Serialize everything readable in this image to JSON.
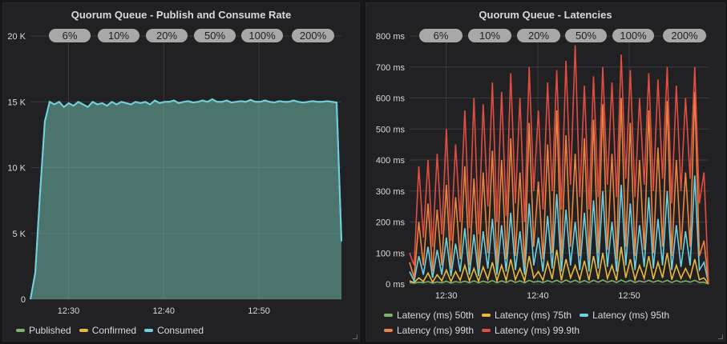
{
  "left": {
    "title": "Quorum Queue - Publish and Consume Rate",
    "annotations": [
      "6%",
      "10%",
      "20%",
      "50%",
      "100%",
      "200%"
    ],
    "legend": [
      {
        "name": "Published",
        "color": "#7eb26d"
      },
      {
        "name": "Confirmed",
        "color": "#eab839"
      },
      {
        "name": "Consumed",
        "color": "#6ed0e0"
      }
    ]
  },
  "right": {
    "title": "Quorum Queue - Latencies",
    "annotations": [
      "6%",
      "10%",
      "20%",
      "50%",
      "100%",
      "200%"
    ],
    "legend": [
      {
        "name": "Latency (ms) 50th",
        "color": "#7eb26d"
      },
      {
        "name": "Latency (ms) 75th",
        "color": "#eab839"
      },
      {
        "name": "Latency (ms) 95th",
        "color": "#6ed0e0"
      },
      {
        "name": "Latency (ms) 99th",
        "color": "#ef843c"
      },
      {
        "name": "Latency (ms) 99.9th",
        "color": "#e24d42"
      }
    ]
  },
  "chart_data": [
    {
      "type": "area",
      "title": "Quorum Queue - Publish and Consume Rate",
      "xlim": [
        "12:26:00",
        "12:58:40"
      ],
      "xticks": [
        "12:30",
        "12:40",
        "12:50"
      ],
      "yticks": [
        "0",
        "5 K",
        "10 K",
        "15 K",
        "20 K"
      ],
      "ylim": [
        0,
        20000
      ],
      "grid": true,
      "legend": "bottom",
      "series": [
        {
          "name": "Published",
          "color": "#7eb26d",
          "values": [
            0,
            2000,
            8000,
            13500,
            15000,
            14800,
            15000,
            14600,
            14900,
            14700,
            15000,
            14800,
            14600,
            15000,
            14800,
            14900,
            14700,
            15000,
            14800,
            15000,
            14900,
            14800,
            15000,
            14900,
            15000,
            14800,
            15100,
            14900,
            15000,
            15000,
            15100,
            14900,
            15000,
            15050,
            14950,
            15000,
            15100,
            15000,
            15200,
            15000,
            15000,
            15100,
            14950,
            15000,
            15050,
            15000,
            15150,
            15000,
            15000,
            15100,
            15000,
            14950,
            15050,
            15000,
            15000,
            15100,
            15000,
            14950,
            15000,
            15050,
            15000,
            15000,
            15050,
            15000,
            14950,
            4400
          ]
        },
        {
          "name": "Confirmed",
          "color": "#eab839",
          "values": []
        },
        {
          "name": "Consumed",
          "color": "#6ed0e0",
          "values": [
            0,
            2000,
            8000,
            13500,
            15000,
            14800,
            15000,
            14600,
            14900,
            14700,
            15000,
            14800,
            14600,
            15000,
            14800,
            14900,
            14700,
            15000,
            14800,
            15000,
            14900,
            14800,
            15000,
            14900,
            15000,
            14800,
            15100,
            14900,
            15000,
            15000,
            15100,
            14900,
            15000,
            15050,
            14950,
            15000,
            15100,
            15000,
            15200,
            15000,
            15000,
            15100,
            14950,
            15000,
            15050,
            15000,
            15150,
            15000,
            15000,
            15100,
            15000,
            14950,
            15050,
            15000,
            15000,
            15100,
            15000,
            14950,
            15000,
            15050,
            15000,
            15000,
            15050,
            15000,
            14950,
            4400
          ]
        }
      ]
    },
    {
      "type": "line",
      "title": "Quorum Queue - Latencies",
      "xlim": [
        "12:26:00",
        "12:58:40"
      ],
      "xticks": [
        "12:30",
        "12:40",
        "12:50"
      ],
      "yticks": [
        "0 ms",
        "100 ms",
        "200 ms",
        "300 ms",
        "400 ms",
        "500 ms",
        "600 ms",
        "700 ms",
        "800 ms"
      ],
      "ylim": [
        0,
        800
      ],
      "grid": true,
      "legend": "bottom",
      "series": [
        {
          "name": "Latency (ms) 50th",
          "color": "#7eb26d",
          "values": [
            5,
            3,
            6,
            4,
            8,
            3,
            7,
            4,
            9,
            3,
            8,
            5,
            9,
            4,
            10,
            4,
            9,
            5,
            11,
            4,
            10,
            5,
            12,
            5,
            10,
            4,
            12,
            6,
            9,
            5,
            11,
            6,
            12,
            5,
            13,
            6,
            12,
            5,
            11,
            5,
            12,
            6,
            13,
            6,
            11,
            5,
            13,
            6,
            12,
            5,
            10,
            6,
            12,
            6,
            11,
            6,
            12,
            5,
            11,
            6,
            10,
            6,
            12,
            5,
            6,
            0
          ]
        },
        {
          "name": "Latency (ms) 75th",
          "color": "#eab839",
          "values": [
            10,
            5,
            20,
            8,
            35,
            6,
            30,
            10,
            45,
            8,
            40,
            12,
            60,
            10,
            50,
            9,
            55,
            15,
            70,
            10,
            60,
            12,
            80,
            14,
            50,
            10,
            90,
            20,
            40,
            12,
            70,
            16,
            110,
            12,
            80,
            20,
            60,
            14,
            75,
            12,
            90,
            16,
            100,
            18,
            60,
            12,
            120,
            20,
            80,
            14,
            60,
            18,
            90,
            16,
            70,
            20,
            100,
            14,
            60,
            18,
            50,
            20,
            80,
            14,
            20,
            0
          ]
        },
        {
          "name": "Latency (ms) 95th",
          "color": "#6ed0e0",
          "values": [
            40,
            10,
            90,
            30,
            120,
            20,
            110,
            30,
            150,
            25,
            130,
            40,
            180,
            30,
            160,
            25,
            170,
            50,
            210,
            30,
            190,
            40,
            230,
            45,
            170,
            30,
            260,
            60,
            150,
            40,
            220,
            50,
            290,
            40,
            240,
            60,
            200,
            45,
            230,
            40,
            270,
            50,
            300,
            55,
            200,
            40,
            320,
            60,
            260,
            45,
            190,
            55,
            280,
            50,
            210,
            60,
            300,
            45,
            190,
            55,
            170,
            60,
            350,
            45,
            70,
            0
          ]
        },
        {
          "name": "Latency (ms) 99th",
          "color": "#ef843c",
          "values": [
            70,
            20,
            200,
            60,
            260,
            40,
            240,
            60,
            320,
            50,
            280,
            80,
            380,
            60,
            340,
            50,
            360,
            100,
            430,
            60,
            400,
            80,
            470,
            90,
            360,
            60,
            520,
            120,
            330,
            80,
            450,
            100,
            560,
            80,
            480,
            120,
            420,
            90,
            470,
            80,
            530,
            100,
            580,
            110,
            420,
            80,
            600,
            120,
            520,
            90,
            400,
            110,
            560,
            100,
            440,
            120,
            590,
            90,
            400,
            110,
            360,
            120,
            620,
            90,
            140,
            0
          ]
        },
        {
          "name": "Latency (ms) 99.9th",
          "color": "#e24d42",
          "values": [
            100,
            60,
            380,
            150,
            400,
            120,
            420,
            160,
            500,
            140,
            450,
            200,
            560,
            180,
            600,
            160,
            580,
            250,
            650,
            200,
            620,
            220,
            680,
            260,
            600,
            200,
            700,
            300,
            560,
            240,
            650,
            300,
            690,
            240,
            720,
            320,
            770,
            280,
            640,
            240,
            670,
            280,
            700,
            320,
            650,
            280,
            740,
            340,
            690,
            280,
            600,
            320,
            680,
            300,
            660,
            340,
            700,
            260,
            640,
            300,
            600,
            340,
            700,
            260,
            360,
            0
          ]
        }
      ]
    }
  ]
}
